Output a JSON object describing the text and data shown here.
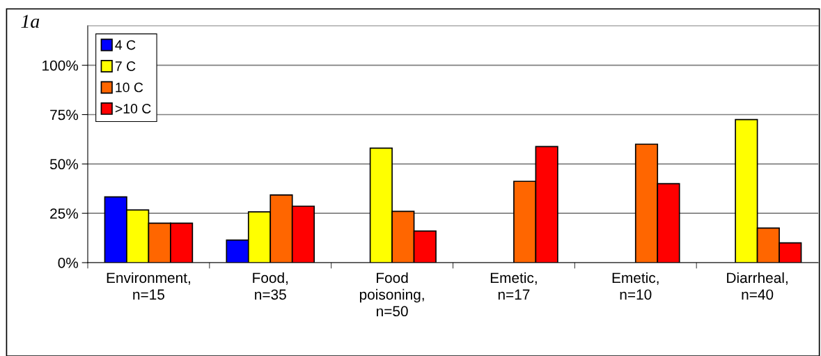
{
  "chart_data": {
    "type": "bar",
    "title": "1a",
    "categories": [
      "Environment,\nn=15",
      "Food,\nn=35",
      "Food\npoisoning,\nn=50",
      "Emetic,\nn=17",
      "Emetic,\nn=10",
      "Diarrheal,\nn=40"
    ],
    "series": [
      {
        "name": "4 C",
        "color": "#0000ff",
        "values": [
          33.3,
          11.4,
          null,
          null,
          null,
          null
        ]
      },
      {
        "name": "7 C",
        "color": "#ffff00",
        "values": [
          26.7,
          25.7,
          58,
          null,
          null,
          72.5
        ]
      },
      {
        "name": "10 C",
        "color": "#ff6600",
        "values": [
          20,
          34.3,
          26,
          41.2,
          60,
          17.5
        ]
      },
      {
        "name": ">10 C",
        "color": "#ff0000",
        "values": [
          20,
          28.6,
          16,
          58.8,
          40,
          10
        ]
      }
    ],
    "ylim": [
      0,
      120
    ],
    "yticks": [
      {
        "value": 0,
        "label": "0%"
      },
      {
        "value": 25,
        "label": "25%"
      },
      {
        "value": 50,
        "label": "50%"
      },
      {
        "value": 75,
        "label": "75%"
      },
      {
        "value": 100,
        "label": "100%"
      }
    ],
    "grid": "y",
    "legend": "top left"
  }
}
